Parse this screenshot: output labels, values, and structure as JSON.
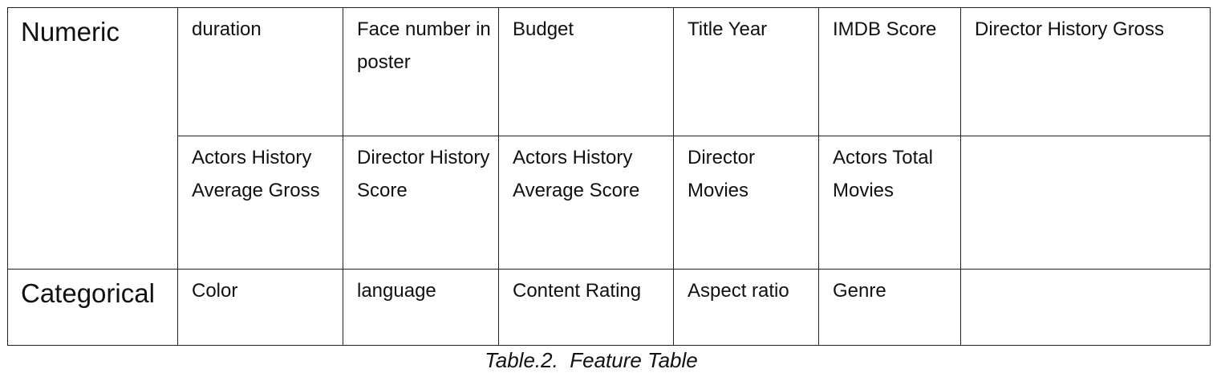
{
  "table": {
    "numeric_label": "Numeric",
    "categorical_label": "Categorical",
    "numeric_row_1": [
      "duration",
      "Face number in poster",
      "Budget",
      "Title Year",
      "IMDB Score",
      "Director History Gross"
    ],
    "numeric_row_2": [
      "Actors History Average Gross",
      "Director History Score",
      "Actors History Average Score",
      "Director Movies",
      "Actors Total Movies",
      ""
    ],
    "categorical_row": [
      "Color",
      "language",
      "Content Rating",
      "Aspect ratio",
      "Genre",
      ""
    ]
  },
  "caption": "Table.2.  Feature Table"
}
